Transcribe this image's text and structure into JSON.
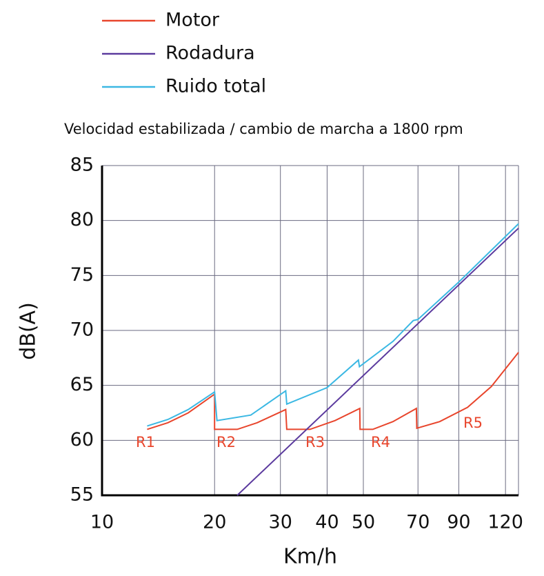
{
  "chart_data": {
    "type": "line",
    "title": "Velocidad estabilizada / cambio de marcha a 1800 rpm",
    "x_label": "Km/h",
    "y_label": "dB(A)",
    "xscale": "log",
    "xlim": [
      10,
      130
    ],
    "ylim": [
      55,
      85
    ],
    "xticks": [
      10,
      20,
      30,
      40,
      50,
      70,
      90,
      120
    ],
    "yticks": [
      55,
      60,
      65,
      70,
      75,
      80,
      85
    ],
    "grid": true,
    "legend": "top-left",
    "series": [
      {
        "name": "Motor",
        "color": "#e8452c",
        "x": [
          13.2,
          15,
          17,
          20,
          20,
          23,
          26,
          31,
          31.2,
          36,
          42,
          48.9,
          49,
          53,
          60,
          69.3,
          69.5,
          80,
          95,
          110,
          130
        ],
        "values": [
          61.0,
          61.6,
          62.5,
          64.2,
          61.0,
          61.0,
          61.6,
          62.8,
          61.0,
          61.0,
          61.8,
          62.9,
          61.0,
          61.0,
          61.7,
          62.9,
          61.1,
          61.7,
          63.0,
          64.9,
          68.0
        ]
      },
      {
        "name": "Rodadura",
        "color": "#5b3a9e",
        "x": [
          23,
          130
        ],
        "values": [
          55,
          79.3
        ]
      },
      {
        "name": "Ruido total",
        "color": "#3bb8e3",
        "x": [
          13.2,
          15,
          17,
          20,
          20.3,
          25,
          31,
          31.2,
          40,
          48.5,
          48.8,
          60,
          68,
          70,
          90,
          130
        ],
        "values": [
          61.3,
          61.9,
          62.8,
          64.4,
          61.8,
          62.3,
          64.5,
          63.3,
          64.8,
          67.3,
          66.7,
          69.0,
          70.9,
          71.0,
          74.4,
          79.7
        ]
      }
    ],
    "annotations": [
      "R1",
      "R2",
      "R3",
      "R4",
      "R5"
    ]
  }
}
